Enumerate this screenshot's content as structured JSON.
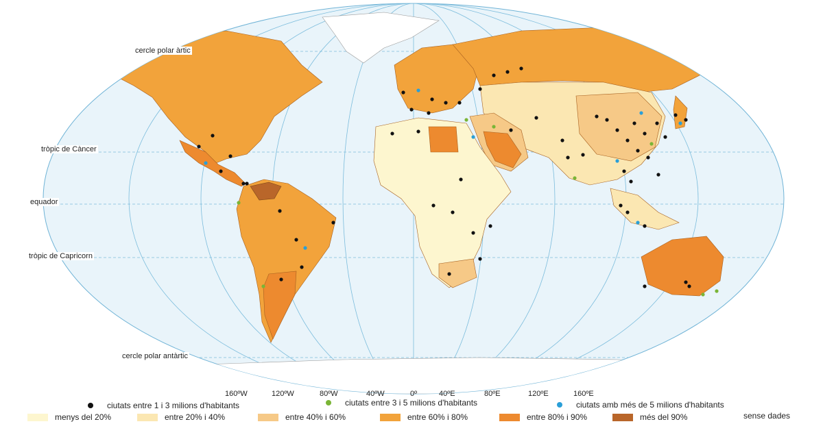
{
  "lines": {
    "arctic": "cercle polar àrtic",
    "cancer": "tròpic de Càncer",
    "equator": "equador",
    "capricorn": "tròpic de Capricorn",
    "antarctic": "cercle polar antàrtic"
  },
  "longitudes": [
    "160ºW",
    "120ºW",
    "80ºW",
    "40ºW",
    "0º",
    "40ºE",
    "80ºE",
    "120ºE",
    "160ºE"
  ],
  "legend": {
    "cities": [
      {
        "label": "ciutats entre 1 i 3 milions d'habitants",
        "color": "#111111"
      },
      {
        "label": "ciutats entre 3 i 5 milions d'habitants",
        "color": "#7ab536"
      },
      {
        "label": "ciutats amb més de 5 milions d'habitants",
        "color": "#2a9fd8"
      }
    ],
    "classes": [
      {
        "label": "menys del 20%",
        "color": "#fdf6cf"
      },
      {
        "label": "entre 20% i 40%",
        "color": "#fbe7b2"
      },
      {
        "label": "entre 40% i 60%",
        "color": "#f6c987"
      },
      {
        "label": "entre 60% i 80%",
        "color": "#f2a33b"
      },
      {
        "label": "entre 80% i 90%",
        "color": "#ed8a2f"
      },
      {
        "label": "més del 90%",
        "color": "#b9662a"
      }
    ],
    "no_data": "sense dades"
  }
}
